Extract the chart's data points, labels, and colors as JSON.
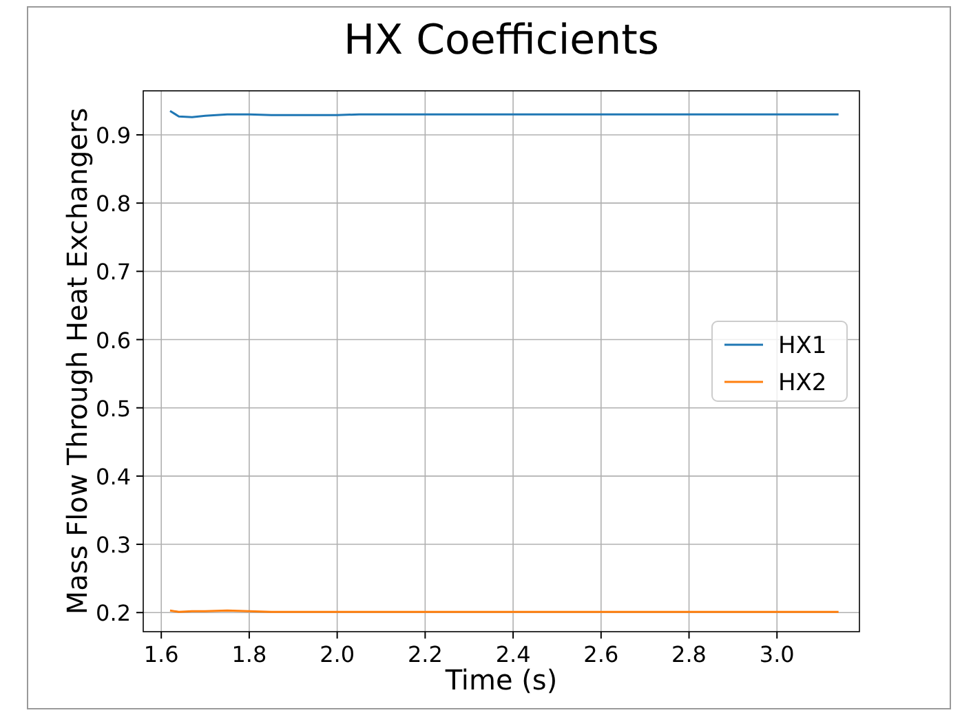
{
  "chart_data": {
    "type": "line",
    "title": "HX Coefficients",
    "xlabel": "Time (s)",
    "ylabel": "Mass Flow Through Heat Exchangers",
    "xlim": [
      1.559,
      3.1875
    ],
    "xticks": [
      {
        "value": 1.6,
        "label": "1.6"
      },
      {
        "value": 1.8,
        "label": "1.8"
      },
      {
        "value": 2.0,
        "label": "2.0"
      },
      {
        "value": 2.2,
        "label": "2.2"
      },
      {
        "value": 2.4,
        "label": "2.4"
      },
      {
        "value": 2.6,
        "label": "2.6"
      },
      {
        "value": 2.8,
        "label": "2.8"
      },
      {
        "value": 3.0,
        "label": "3.0"
      }
    ],
    "ylim": [
      0.172,
      0.9645
    ],
    "yticks": [
      0.2,
      0.3,
      0.4,
      0.5,
      0.6,
      0.7,
      0.8,
      0.9
    ],
    "grid": true,
    "legend": "right",
    "marker": "none",
    "line_style": "solid",
    "x": [
      1.62,
      1.64,
      1.67,
      1.7,
      1.75,
      1.8,
      1.85,
      1.9,
      2.0,
      2.05,
      2.2,
      2.4,
      2.65,
      2.8,
      3.0,
      3.14
    ],
    "series": [
      {
        "name": "HX1",
        "color": "#1f77b4",
        "values": [
          0.935,
          0.927,
          0.926,
          0.928,
          0.93,
          0.93,
          0.929,
          0.929,
          0.929,
          0.93,
          0.93,
          0.93,
          0.93,
          0.93,
          0.93,
          0.93
        ]
      },
      {
        "name": "HX2",
        "color": "#ff7f0e",
        "values": [
          0.203,
          0.201,
          0.202,
          0.202,
          0.203,
          0.202,
          0.201,
          0.201,
          0.201,
          0.201,
          0.201,
          0.201,
          0.201,
          0.201,
          0.201,
          0.201
        ]
      }
    ]
  }
}
